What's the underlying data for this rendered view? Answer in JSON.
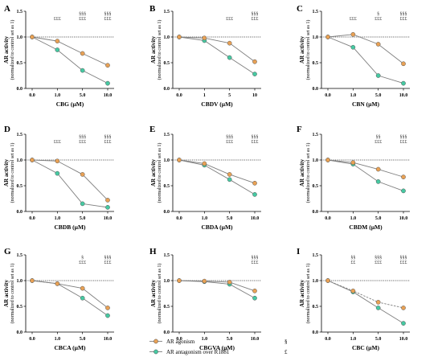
{
  "colors": {
    "agonism": "#e8a155",
    "antagonism": "#46c9a2",
    "line": "#7f7f7f",
    "reference": "#333333"
  },
  "legend": [
    {
      "label": "AR agonism",
      "symbol": "§",
      "color": "#e8a155"
    },
    {
      "label": "AR antagonism over R1881",
      "symbol": "£",
      "color": "#46c9a2"
    }
  ],
  "chart_data": [
    {
      "type": "line",
      "panel": "A",
      "ylabel": "AR activity",
      "ylabel_sub": "(normalized to control set as 1)",
      "xlabel": "CBG (µM)",
      "categories": [
        "0.0",
        "1.0",
        "5.0",
        "10.0"
      ],
      "yticks": [
        "0.0",
        "0.5",
        "1.0",
        "1.5"
      ],
      "ylim": [
        0,
        1.5
      ],
      "reference_line": 1.0,
      "series": [
        {
          "name": "AR agonism",
          "values": [
            1.0,
            0.92,
            0.68,
            0.45
          ]
        },
        {
          "name": "AR antagonism over R1881",
          "values": [
            1.0,
            0.75,
            0.35,
            0.1
          ]
        }
      ],
      "annotations": [
        {
          "category": "1.0",
          "lines": [
            "£££"
          ]
        },
        {
          "category": "5.0",
          "lines": [
            "§§§",
            "£££"
          ]
        },
        {
          "category": "10.0",
          "lines": [
            "§§§",
            "£££"
          ]
        }
      ]
    },
    {
      "type": "line",
      "panel": "B",
      "ylabel": "AR activity",
      "ylabel_sub": "(normalized to control set as 1)",
      "xlabel": "CBDV (µM)",
      "categories": [
        "0.0",
        "1",
        "5",
        "10"
      ],
      "yticks": [
        "0.0",
        "0.5",
        "1.0",
        "1.5"
      ],
      "ylim": [
        0,
        1.5
      ],
      "reference_line": 1.0,
      "series": [
        {
          "name": "AR agonism",
          "values": [
            1.0,
            0.98,
            0.88,
            0.52
          ]
        },
        {
          "name": "AR antagonism over R1881",
          "values": [
            1.0,
            0.93,
            0.6,
            0.28
          ]
        }
      ],
      "annotations": [
        {
          "category": "5",
          "lines": [
            "£££"
          ]
        },
        {
          "category": "10",
          "lines": [
            "§§§",
            "£££"
          ]
        }
      ]
    },
    {
      "type": "line",
      "panel": "C",
      "ylabel": "AR activity",
      "ylabel_sub": "(normalized to control set as 1)",
      "xlabel": "CBN (µM)",
      "categories": [
        "0.0",
        "1.0",
        "5.0",
        "10.0"
      ],
      "yticks": [
        "0.0",
        "0.5",
        "1.0",
        "1.5"
      ],
      "ylim": [
        0,
        1.5
      ],
      "reference_line": 1.0,
      "series": [
        {
          "name": "AR agonism",
          "values": [
            1.0,
            1.05,
            0.86,
            0.48
          ]
        },
        {
          "name": "AR antagonism over R1881",
          "values": [
            1.0,
            0.8,
            0.25,
            0.1
          ]
        }
      ],
      "annotations": [
        {
          "category": "1.0",
          "lines": [
            "£££"
          ]
        },
        {
          "category": "5.0",
          "lines": [
            "§",
            "£££"
          ]
        },
        {
          "category": "10.0",
          "lines": [
            "§§§",
            "£££"
          ]
        }
      ]
    },
    {
      "type": "line",
      "panel": "D",
      "ylabel": "AR activity",
      "ylabel_sub": "(normalized to control set as 1)",
      "xlabel": "CBDB (µM)",
      "categories": [
        "0.0",
        "1.0",
        "5.0",
        "10.0"
      ],
      "yticks": [
        "0.0",
        "0.5",
        "1.0",
        "1.5"
      ],
      "ylim": [
        0,
        1.5
      ],
      "reference_line": 1.0,
      "series": [
        {
          "name": "AR agonism",
          "values": [
            1.0,
            0.98,
            0.72,
            0.22
          ]
        },
        {
          "name": "AR antagonism over R1881",
          "values": [
            1.0,
            0.74,
            0.15,
            0.08
          ]
        }
      ],
      "annotations": [
        {
          "category": "1.0",
          "lines": [
            "£££"
          ]
        },
        {
          "category": "5.0",
          "lines": [
            "§§§",
            "£££"
          ]
        },
        {
          "category": "10.0",
          "lines": [
            "§§§",
            "£££"
          ]
        }
      ]
    },
    {
      "type": "line",
      "panel": "E",
      "ylabel": "AR activity",
      "ylabel_sub": "(normalized to control set as 1)",
      "xlabel": "CBDA (µM)",
      "categories": [
        "0.0",
        "1.0",
        "5.0",
        "10.0"
      ],
      "yticks": [
        "0.0",
        "0.5",
        "1.0",
        "1.5"
      ],
      "ylim": [
        0,
        1.5
      ],
      "reference_line": 1.0,
      "series": [
        {
          "name": "AR agonism",
          "values": [
            1.0,
            0.93,
            0.72,
            0.55
          ]
        },
        {
          "name": "AR antagonism over R1881",
          "values": [
            1.0,
            0.9,
            0.62,
            0.33
          ]
        }
      ],
      "annotations": [
        {
          "category": "5.0",
          "lines": [
            "§§§",
            "£££"
          ]
        },
        {
          "category": "10.0",
          "lines": [
            "§§§",
            "£££"
          ]
        }
      ]
    },
    {
      "type": "line",
      "panel": "F",
      "ylabel": "AR activity",
      "ylabel_sub": "(normalized to control set as 1)",
      "xlabel": "CBDM (µM)",
      "categories": [
        "0.0",
        "1.0",
        "5.0",
        "10.0"
      ],
      "yticks": [
        "0.0",
        "0.5",
        "1.0",
        "1.5"
      ],
      "ylim": [
        0,
        1.5
      ],
      "reference_line": 1.0,
      "series": [
        {
          "name": "AR agonism",
          "values": [
            1.0,
            0.95,
            0.82,
            0.67
          ]
        },
        {
          "name": "AR antagonism over R1881",
          "values": [
            1.0,
            0.92,
            0.58,
            0.4
          ]
        }
      ],
      "annotations": [
        {
          "category": "5.0",
          "lines": [
            "§§",
            "£££"
          ]
        },
        {
          "category": "10.0",
          "lines": [
            "§§§",
            "£££"
          ]
        }
      ]
    },
    {
      "type": "line",
      "panel": "G",
      "ylabel": "AR activity",
      "ylabel_sub": "(normalized to control set as 1)",
      "xlabel": "CBCA (µM)",
      "categories": [
        "0.0",
        "1.0",
        "5.0",
        "10.0"
      ],
      "yticks": [
        "0.0",
        "0.5",
        "1.0",
        "1.5"
      ],
      "ylim": [
        0,
        1.5
      ],
      "reference_line": 1.0,
      "series": [
        {
          "name": "AR agonism",
          "values": [
            1.0,
            0.94,
            0.85,
            0.47
          ]
        },
        {
          "name": "AR antagonism over R1881",
          "values": [
            1.0,
            0.94,
            0.66,
            0.32
          ]
        }
      ],
      "annotations": [
        {
          "category": "5.0",
          "lines": [
            "§",
            "£££"
          ]
        },
        {
          "category": "10.0",
          "lines": [
            "§§§",
            "£££"
          ]
        }
      ]
    },
    {
      "type": "line",
      "panel": "H",
      "ylabel": "AR activity",
      "ylabel_sub": "(normalized to control set as 1)",
      "xlabel": "CBGVA (µM)",
      "categories": [
        "0.0",
        "1.0",
        "5.0",
        "10.0"
      ],
      "yticks": [
        "0.0",
        "0.5",
        "1.0",
        "1.5"
      ],
      "ylim": [
        0,
        1.5
      ],
      "reference_line": 1.0,
      "series": [
        {
          "name": "AR agonism",
          "values": [
            1.0,
            0.99,
            0.97,
            0.8
          ]
        },
        {
          "name": "AR antagonism over R1881",
          "values": [
            1.0,
            0.98,
            0.93,
            0.66
          ]
        }
      ],
      "annotations": [
        {
          "category": "10.0",
          "lines": [
            "§§§",
            "£££"
          ]
        }
      ]
    },
    {
      "type": "line",
      "panel": "I",
      "ylabel": "AR activity",
      "ylabel_sub": "(normalized to control set as 1)",
      "xlabel": "CBC (µM)",
      "categories": [
        "0.0",
        "1.0",
        "5.0",
        "10.0"
      ],
      "yticks": [
        "0.0",
        "0.5",
        "1.0",
        "1.5"
      ],
      "ylim": [
        0,
        1.5
      ],
      "reference_line": 1.0,
      "agonism_line_style": "dashed",
      "series": [
        {
          "name": "AR agonism",
          "values": [
            1.0,
            0.8,
            0.58,
            0.47
          ]
        },
        {
          "name": "AR antagonism over R1881",
          "values": [
            1.0,
            0.78,
            0.47,
            0.17
          ]
        }
      ],
      "annotations": [
        {
          "category": "1.0",
          "lines": [
            "§§",
            "££"
          ]
        },
        {
          "category": "5.0",
          "lines": [
            "§§§",
            "£££"
          ]
        },
        {
          "category": "10.0",
          "lines": [
            "§§§",
            "£££"
          ]
        }
      ]
    }
  ]
}
